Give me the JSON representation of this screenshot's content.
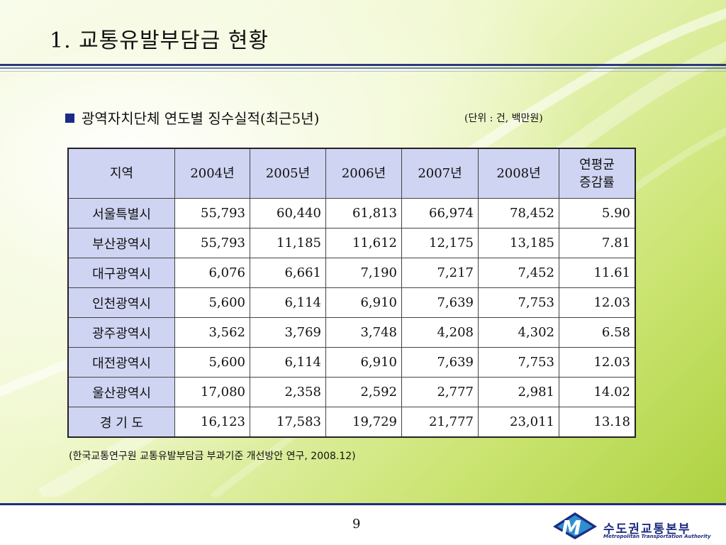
{
  "slide": {
    "title": "1. 교통유발부담금 현황",
    "subtitle": "광역자치단체 연도별 징수실적(최근5년)",
    "unit": "(단위 : 건, 백만원)",
    "source": "(한국교통연구원 교통유발부담금 부과기준 개선방안 연구, 2008.12)",
    "page_number": "9"
  },
  "table": {
    "headers": [
      "지역",
      "2004년",
      "2005년",
      "2006년",
      "2007년",
      "2008년",
      "연평균\n증감률"
    ],
    "rows": [
      [
        "서울특별시",
        "55,793",
        "60,440",
        "61,813",
        "66,974",
        "78,452",
        "5.90"
      ],
      [
        "부산광역시",
        "55,793",
        "11,185",
        "11,612",
        "12,175",
        "13,185",
        "7.81"
      ],
      [
        "대구광역시",
        "6,076",
        "6,661",
        "7,190",
        "7,217",
        "7,452",
        "11.61"
      ],
      [
        "인천광역시",
        "5,600",
        "6,114",
        "6,910",
        "7,639",
        "7,753",
        "12.03"
      ],
      [
        "광주광역시",
        "3,562",
        "3,769",
        "3,748",
        "4,208",
        "4,302",
        "6.58"
      ],
      [
        "대전광역시",
        "5,600",
        "6,114",
        "6,910",
        "7,639",
        "7,753",
        "12.03"
      ],
      [
        "울산광역시",
        "17,080",
        "2,358",
        "2,592",
        "2,777",
        "2,981",
        "14.02"
      ],
      [
        "경 기 도",
        "16,123",
        "17,583",
        "19,729",
        "21,777",
        "23,011",
        "13.18"
      ]
    ]
  },
  "logo": {
    "name_ko": "수도권교통본부",
    "name_en": "Metropolitan Transportation Authority",
    "color": "#1e2c80"
  },
  "colors": {
    "header_fill": "#cfd4f2",
    "rule": "#2b3a7a",
    "bullet": "#1a2a8a"
  }
}
